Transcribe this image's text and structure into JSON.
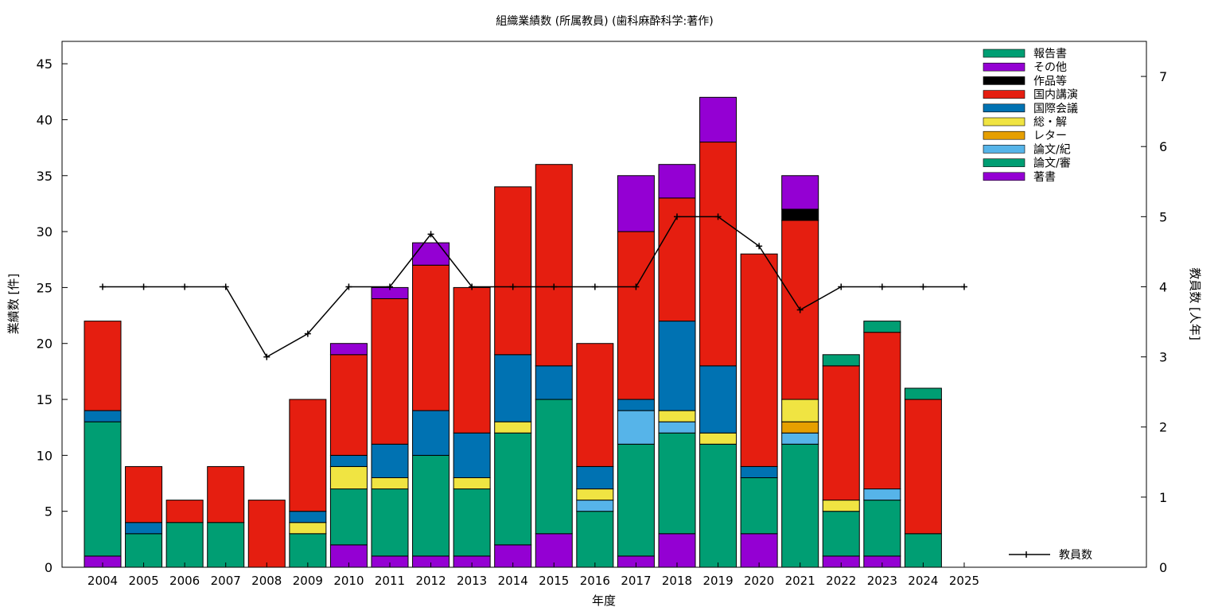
{
  "chart_data": {
    "type": "bar",
    "stacked": true,
    "title": "組織業績数 (所属教員) (歯科麻酔科学:著作)",
    "xlabel": "年度",
    "ylabel": "業績数 [件]",
    "y2label": "教員数 [人年]",
    "ylim": [
      0,
      47
    ],
    "y2lim": [
      0,
      7.5
    ],
    "yticks": [
      0,
      5,
      10,
      15,
      20,
      25,
      30,
      35,
      40,
      45
    ],
    "y2ticks": [
      0,
      1,
      2,
      3,
      4,
      5,
      6,
      7
    ],
    "legend_position": "top-right",
    "grid": false,
    "categories": [
      "2004",
      "2005",
      "2006",
      "2007",
      "2008",
      "2009",
      "2010",
      "2011",
      "2012",
      "2013",
      "2014",
      "2015",
      "2016",
      "2017",
      "2018",
      "2019",
      "2020",
      "2021",
      "2022",
      "2023",
      "2024",
      "2025"
    ],
    "series": [
      {
        "name": "著書",
        "color": "#9400d3",
        "values": [
          1,
          0,
          0,
          0,
          0,
          0,
          2,
          1,
          1,
          1,
          2,
          3,
          0,
          1,
          3,
          0,
          3,
          0,
          1,
          1,
          0,
          0
        ]
      },
      {
        "name": "論文/審",
        "color": "#009e73",
        "values": [
          12,
          3,
          4,
          4,
          0,
          3,
          5,
          6,
          9,
          6,
          10,
          12,
          5,
          10,
          9,
          11,
          5,
          11,
          4,
          5,
          3,
          0
        ]
      },
      {
        "name": "論文/紀",
        "color": "#56b4e9",
        "values": [
          0,
          0,
          0,
          0,
          0,
          0,
          0,
          0,
          0,
          0,
          0,
          0,
          1,
          3,
          1,
          0,
          0,
          1,
          0,
          1,
          0,
          0
        ]
      },
      {
        "name": "レター",
        "color": "#e69f00",
        "values": [
          0,
          0,
          0,
          0,
          0,
          0,
          0,
          0,
          0,
          0,
          0,
          0,
          0,
          0,
          0,
          0,
          0,
          1,
          0,
          0,
          0,
          0
        ]
      },
      {
        "name": "総・解",
        "color": "#f0e442",
        "values": [
          0,
          0,
          0,
          0,
          0,
          1,
          2,
          1,
          0,
          1,
          1,
          0,
          1,
          0,
          1,
          1,
          0,
          2,
          1,
          0,
          0,
          0
        ]
      },
      {
        "name": "国際会議",
        "color": "#0072b2",
        "values": [
          1,
          1,
          0,
          0,
          0,
          1,
          1,
          3,
          4,
          4,
          6,
          3,
          2,
          1,
          8,
          6,
          1,
          0,
          0,
          0,
          0,
          0
        ]
      },
      {
        "name": "国内講演",
        "color": "#e51e10",
        "values": [
          8,
          5,
          2,
          5,
          6,
          10,
          9,
          13,
          13,
          13,
          15,
          18,
          11,
          15,
          11,
          20,
          19,
          16,
          12,
          14,
          12,
          0
        ]
      },
      {
        "name": "作品等",
        "color": "#000000",
        "values": [
          0,
          0,
          0,
          0,
          0,
          0,
          0,
          0,
          0,
          0,
          0,
          0,
          0,
          0,
          0,
          0,
          0,
          1,
          0,
          0,
          0,
          0
        ]
      },
      {
        "name": "その他",
        "color": "#9400d3",
        "values": [
          0,
          0,
          0,
          0,
          0,
          0,
          1,
          1,
          2,
          0,
          0,
          0,
          0,
          5,
          3,
          4,
          0,
          3,
          0,
          0,
          0,
          0
        ]
      },
      {
        "name": "報告書",
        "color": "#009e73",
        "values": [
          0,
          0,
          0,
          0,
          0,
          0,
          0,
          0,
          0,
          0,
          0,
          0,
          0,
          0,
          0,
          0,
          0,
          0,
          1,
          1,
          1,
          0
        ]
      }
    ],
    "line_series": {
      "name": "教員数",
      "color": "#000000",
      "axis": "y2",
      "values": [
        4,
        4,
        4,
        4,
        3,
        3.33,
        4,
        4,
        4.75,
        4,
        4,
        4,
        4,
        4,
        5,
        5,
        4.58,
        3.67,
        4,
        4,
        4,
        4
      ]
    }
  }
}
